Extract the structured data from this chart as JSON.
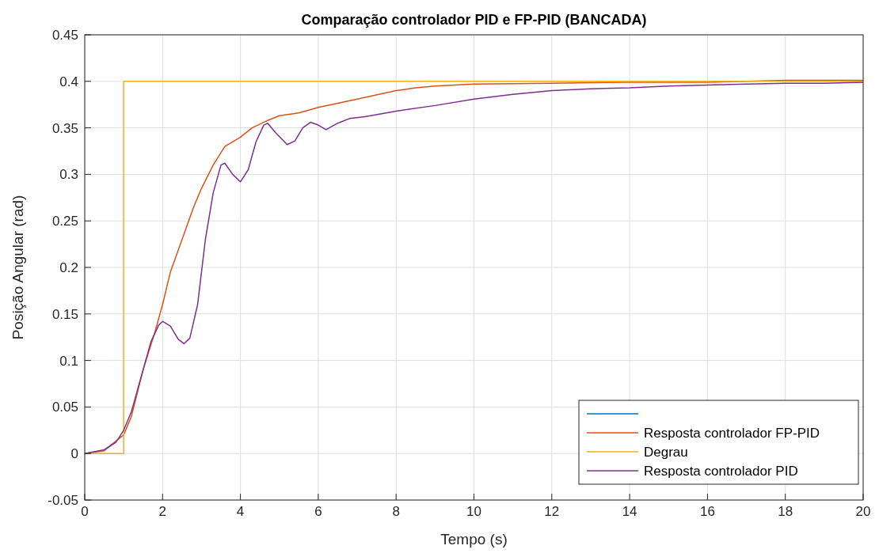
{
  "chart_data": {
    "type": "line",
    "title": "Comparação controlador PID e FP-PID (BANCADA)",
    "xlabel": "Tempo (s)",
    "ylabel": "Posição Angular (rad)",
    "xlim": [
      0,
      20
    ],
    "xticks": [
      0,
      2,
      4,
      6,
      8,
      10,
      12,
      14,
      16,
      18,
      20
    ],
    "ylim": [
      -0.05,
      0.45
    ],
    "yticks": [
      -0.05,
      0,
      0.05,
      0.1,
      0.15,
      0.2,
      0.25,
      0.3,
      0.35,
      0.4,
      0.45
    ],
    "grid": true,
    "legend": "bottom right",
    "series": [
      {
        "color": "#0072bd"
      },
      {
        "name": "Resposta controlador FP-PID",
        "color": "#d95319",
        "x": [
          0,
          0.5,
          1,
          1.2,
          1.5,
          1.8,
          2,
          2.2,
          2.5,
          2.8,
          3,
          3.3,
          3.6,
          4,
          4.3,
          4.7,
          5,
          5.5,
          6,
          7,
          8,
          8.5,
          9,
          10,
          12,
          14,
          16,
          18,
          20
        ],
        "values": [
          0,
          0.003,
          0.02,
          0.04,
          0.09,
          0.13,
          0.16,
          0.195,
          0.23,
          0.265,
          0.285,
          0.31,
          0.33,
          0.34,
          0.35,
          0.358,
          0.363,
          0.366,
          0.372,
          0.381,
          0.39,
          0.393,
          0.395,
          0.397,
          0.398,
          0.399,
          0.399,
          0.401,
          0.401
        ]
      },
      {
        "name": "Degrau",
        "color": "#edb120",
        "x": [
          0,
          1,
          1,
          20
        ],
        "values": [
          0,
          0,
          0.4,
          0.4
        ]
      },
      {
        "name": "Resposta controlador PID",
        "color": "#7e2f8e",
        "x": [
          0,
          0.5,
          0.8,
          1,
          1.2,
          1.5,
          1.7,
          1.9,
          2,
          2.2,
          2.4,
          2.55,
          2.7,
          2.9,
          3.1,
          3.3,
          3.5,
          3.6,
          3.8,
          4,
          4.2,
          4.4,
          4.6,
          4.7,
          4.9,
          5.2,
          5.4,
          5.6,
          5.8,
          6,
          6.2,
          6.5,
          6.8,
          7.2,
          8,
          9,
          10,
          11,
          12,
          13,
          14,
          15,
          16,
          17,
          18,
          19,
          20
        ],
        "values": [
          0,
          0.004,
          0.012,
          0.025,
          0.045,
          0.09,
          0.12,
          0.138,
          0.142,
          0.137,
          0.123,
          0.118,
          0.124,
          0.16,
          0.23,
          0.28,
          0.31,
          0.312,
          0.3,
          0.292,
          0.305,
          0.335,
          0.353,
          0.355,
          0.345,
          0.332,
          0.336,
          0.35,
          0.356,
          0.353,
          0.348,
          0.355,
          0.36,
          0.362,
          0.368,
          0.374,
          0.381,
          0.386,
          0.39,
          0.392,
          0.393,
          0.395,
          0.396,
          0.397,
          0.398,
          0.398,
          0.399
        ]
      }
    ]
  }
}
